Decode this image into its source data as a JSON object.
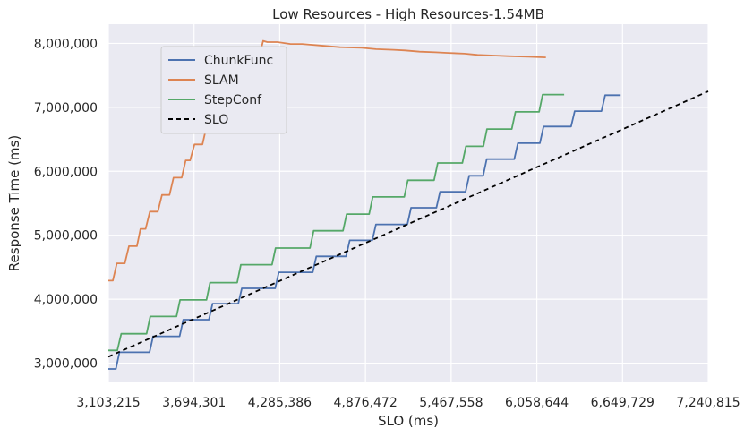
{
  "chart_data": {
    "type": "line",
    "title": "Low Resources - High Resources-1.54MB",
    "xlabel": "SLO (ms)",
    "ylabel": "Response Time (ms)",
    "xlim": [
      3103215,
      7240815
    ],
    "ylim": [
      2700000,
      8300000
    ],
    "grid": true,
    "legend_position": "upper left",
    "x_ticks": [
      3103215,
      3694301,
      4285386,
      4876472,
      5467558,
      6058644,
      6649729,
      7240815
    ],
    "x_tick_labels": [
      "3,103,215",
      "3,694,301",
      "4,285,386",
      "4,876,472",
      "5,467,558",
      "6,058,644",
      "6,649,729",
      "7,240,815"
    ],
    "y_ticks": [
      3000000,
      4000000,
      5000000,
      6000000,
      7000000,
      8000000
    ],
    "y_tick_labels": [
      "3,000,000",
      "4,000,000",
      "5,000,000",
      "6,000,000",
      "7,000,000",
      "8,000,000"
    ],
    "series": [
      {
        "name": "ChunkFunc",
        "color": "#4c72b0",
        "dash": "solid",
        "points": [
          [
            3103215,
            2910000
          ],
          [
            3155000,
            2910000
          ],
          [
            3180000,
            3170000
          ],
          [
            3387000,
            3170000
          ],
          [
            3412000,
            3420000
          ],
          [
            3595000,
            3420000
          ],
          [
            3620000,
            3680000
          ],
          [
            3797000,
            3680000
          ],
          [
            3822000,
            3930000
          ],
          [
            3999000,
            3930000
          ],
          [
            4024000,
            4170000
          ],
          [
            4254000,
            4170000
          ],
          [
            4279000,
            4420000
          ],
          [
            4513000,
            4420000
          ],
          [
            4538000,
            4670000
          ],
          [
            4743000,
            4670000
          ],
          [
            4768000,
            4920000
          ],
          [
            4924000,
            4920000
          ],
          [
            4949000,
            5170000
          ],
          [
            5166000,
            5170000
          ],
          [
            5191000,
            5430000
          ],
          [
            5366000,
            5430000
          ],
          [
            5391000,
            5680000
          ],
          [
            5567000,
            5680000
          ],
          [
            5592000,
            5930000
          ],
          [
            5688000,
            5930000
          ],
          [
            5713000,
            6190000
          ],
          [
            5903000,
            6190000
          ],
          [
            5928000,
            6440000
          ],
          [
            6080000,
            6440000
          ],
          [
            6105000,
            6700000
          ],
          [
            6295000,
            6700000
          ],
          [
            6320000,
            6940000
          ],
          [
            6505000,
            6940000
          ],
          [
            6530000,
            7190000
          ],
          [
            6637000,
            7190000
          ]
        ]
      },
      {
        "name": "SLAM",
        "color": "#dd8452",
        "dash": "solid",
        "points": [
          [
            3103215,
            4290000
          ],
          [
            3134000,
            4290000
          ],
          [
            3162000,
            4560000
          ],
          [
            3217000,
            4560000
          ],
          [
            3245000,
            4830000
          ],
          [
            3300000,
            4830000
          ],
          [
            3325000,
            5100000
          ],
          [
            3360000,
            5100000
          ],
          [
            3390000,
            5370000
          ],
          [
            3445000,
            5370000
          ],
          [
            3473000,
            5630000
          ],
          [
            3525000,
            5630000
          ],
          [
            3553000,
            5900000
          ],
          [
            3609000,
            5900000
          ],
          [
            3637000,
            6170000
          ],
          [
            3667000,
            6170000
          ],
          [
            3697000,
            6420000
          ],
          [
            3752000,
            6420000
          ],
          [
            3780000,
            6700000
          ],
          [
            3838000,
            6700000
          ],
          [
            3866000,
            6960000
          ],
          [
            3920000,
            6960000
          ],
          [
            3948000,
            7230000
          ],
          [
            3975000,
            7230000
          ],
          [
            4003000,
            7490000
          ],
          [
            4058000,
            7490000
          ],
          [
            4086000,
            7770000
          ],
          [
            4141000,
            7770000
          ],
          [
            4171000,
            8040000
          ],
          [
            4200000,
            8020000
          ],
          [
            4270000,
            8020000
          ],
          [
            4360000,
            7990000
          ],
          [
            4440000,
            7990000
          ],
          [
            4600000,
            7960000
          ],
          [
            4700000,
            7940000
          ],
          [
            4850000,
            7930000
          ],
          [
            4950000,
            7910000
          ],
          [
            5070000,
            7900000
          ],
          [
            5150000,
            7890000
          ],
          [
            5250000,
            7870000
          ],
          [
            5360000,
            7860000
          ],
          [
            5450000,
            7850000
          ],
          [
            5560000,
            7840000
          ],
          [
            5650000,
            7820000
          ],
          [
            5760000,
            7810000
          ],
          [
            5860000,
            7800000
          ],
          [
            6000000,
            7790000
          ],
          [
            6121000,
            7780000
          ]
        ]
      },
      {
        "name": "StepConf",
        "color": "#55a868",
        "dash": "solid",
        "points": [
          [
            3103215,
            3200000
          ],
          [
            3165000,
            3200000
          ],
          [
            3192000,
            3460000
          ],
          [
            3367000,
            3460000
          ],
          [
            3392000,
            3730000
          ],
          [
            3573000,
            3730000
          ],
          [
            3598000,
            3990000
          ],
          [
            3780000,
            3990000
          ],
          [
            3805000,
            4260000
          ],
          [
            3992000,
            4260000
          ],
          [
            4017000,
            4540000
          ],
          [
            4232000,
            4540000
          ],
          [
            4257000,
            4800000
          ],
          [
            4494000,
            4800000
          ],
          [
            4519000,
            5070000
          ],
          [
            4722000,
            5070000
          ],
          [
            4747000,
            5330000
          ],
          [
            4902000,
            5330000
          ],
          [
            4927000,
            5600000
          ],
          [
            5144000,
            5600000
          ],
          [
            5169000,
            5860000
          ],
          [
            5350000,
            5860000
          ],
          [
            5375000,
            6130000
          ],
          [
            5545000,
            6130000
          ],
          [
            5570000,
            6390000
          ],
          [
            5690000,
            6390000
          ],
          [
            5715000,
            6660000
          ],
          [
            5886000,
            6660000
          ],
          [
            5911000,
            6930000
          ],
          [
            6074000,
            6930000
          ],
          [
            6099000,
            7200000
          ],
          [
            6247000,
            7200000
          ]
        ]
      },
      {
        "name": "SLO",
        "color": "#000000",
        "dash": "dashed",
        "points": [
          [
            3103215,
            3100000
          ],
          [
            7240815,
            7250000
          ]
        ]
      }
    ]
  }
}
